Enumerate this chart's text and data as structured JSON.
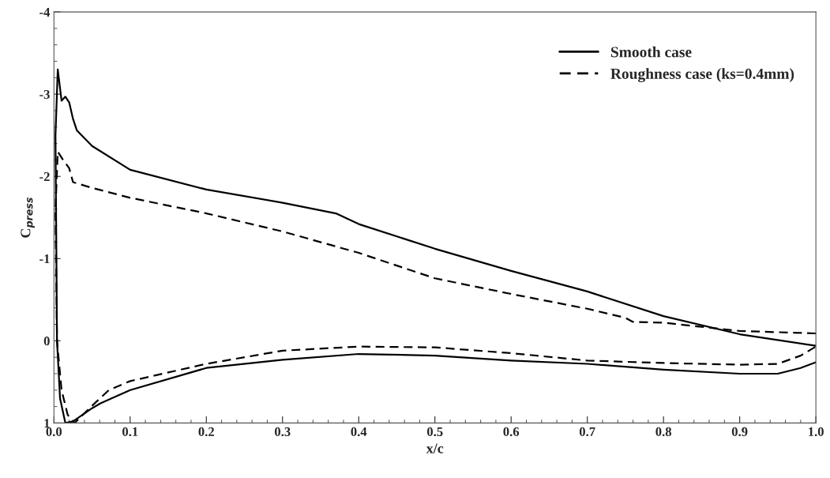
{
  "chart_data": {
    "type": "line",
    "xlabel": "x/c",
    "ylabel": "C$_{press}$",
    "xlim": [
      0,
      1
    ],
    "ylim": [
      1,
      -4
    ],
    "xticks": [
      {
        "value": 0,
        "label": "0.0"
      },
      0.1,
      0.2,
      0.3,
      0.4,
      0.5,
      0.6,
      0.7,
      0.8,
      0.9,
      {
        "value": 1,
        "label": "1.0"
      }
    ],
    "yticks": [
      1,
      0,
      -1,
      -2,
      -3,
      -4
    ],
    "grid": false,
    "legend": "top right",
    "marker": "none",
    "series": [
      {
        "name": "Smooth case",
        "color": "#000000",
        "line_style": "solid",
        "x": [
          1.0,
          0.9,
          0.8,
          0.7,
          0.6,
          0.5,
          0.4,
          0.37,
          0.3,
          0.2,
          0.1,
          0.05,
          0.03,
          0.025,
          0.02,
          0.015,
          0.01,
          0.005,
          0.002,
          0.004,
          0.008,
          0.015,
          0.025,
          0.05,
          0.061,
          0.1,
          0.2,
          0.3,
          0.4,
          0.5,
          0.6,
          0.7,
          0.8,
          0.9,
          0.95,
          0.98,
          1.0
        ],
        "values": [
          0.06,
          -0.08,
          -0.3,
          -0.6,
          -0.85,
          -1.12,
          -1.42,
          -1.55,
          -1.68,
          -1.84,
          -2.08,
          -2.37,
          -2.56,
          -2.7,
          -2.9,
          -2.97,
          -2.92,
          -3.3,
          -2.5,
          0.0,
          0.7,
          1.0,
          0.98,
          0.82,
          0.76,
          0.6,
          0.33,
          0.23,
          0.16,
          0.18,
          0.24,
          0.28,
          0.35,
          0.4,
          0.4,
          0.33,
          0.26
        ]
      },
      {
        "name": "Roughness case (ks=0.4mm)",
        "color": "#000000",
        "line_style": "dashed",
        "x": [
          1.0,
          0.9,
          0.8,
          0.76,
          0.75,
          0.7,
          0.6,
          0.5,
          0.4,
          0.3,
          0.2,
          0.1,
          0.05,
          0.025,
          0.02,
          0.012,
          0.005,
          0.002,
          0.004,
          0.01,
          0.018,
          0.027,
          0.05,
          0.072,
          0.1,
          0.2,
          0.3,
          0.4,
          0.5,
          0.6,
          0.7,
          0.8,
          0.9,
          0.95,
          0.98,
          1.0
        ],
        "values": [
          -0.09,
          -0.12,
          -0.22,
          -0.23,
          -0.28,
          -0.39,
          -0.57,
          -0.76,
          -1.07,
          -1.33,
          -1.55,
          -1.74,
          -1.86,
          -1.93,
          -2.1,
          -2.2,
          -2.3,
          -1.6,
          0.0,
          0.6,
          0.9,
          1.0,
          0.79,
          0.6,
          0.49,
          0.28,
          0.12,
          0.07,
          0.08,
          0.15,
          0.24,
          0.27,
          0.29,
          0.28,
          0.18,
          0.07
        ]
      }
    ]
  }
}
